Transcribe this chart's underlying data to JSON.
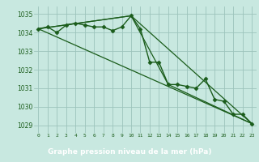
{
  "title": "Graphe pression niveau de la mer (hPa)",
  "bg_color": "#c8e8e0",
  "plot_bg_color": "#c8e8e0",
  "label_bg_color": "#2a6030",
  "label_text_color": "#ffffff",
  "line_color": "#1a5c1a",
  "grid_color": "#9cc4bc",
  "x_ticks": [
    0,
    1,
    2,
    3,
    4,
    5,
    6,
    7,
    8,
    9,
    10,
    11,
    12,
    13,
    14,
    15,
    16,
    17,
    18,
    19,
    20,
    21,
    22,
    23
  ],
  "ylim": [
    1028.6,
    1035.4
  ],
  "yticks": [
    1029,
    1030,
    1031,
    1032,
    1033,
    1034,
    1035
  ],
  "series": [
    {
      "x": [
        0,
        1,
        2,
        3,
        4,
        5,
        6,
        7,
        8,
        9,
        10,
        11,
        12,
        13,
        14,
        15,
        16,
        17,
        18,
        19,
        20,
        21,
        22,
        23
      ],
      "y": [
        1034.2,
        1034.3,
        1034.0,
        1034.4,
        1034.5,
        1034.4,
        1034.3,
        1034.3,
        1034.1,
        1034.3,
        1034.9,
        1034.2,
        1032.4,
        1032.4,
        1031.2,
        1031.2,
        1031.1,
        1031.0,
        1031.5,
        1030.4,
        1030.3,
        1029.6,
        1029.6,
        1029.1
      ],
      "marker": "D",
      "markersize": 2.5,
      "linewidth": 1.0
    },
    {
      "x": [
        0,
        23
      ],
      "y": [
        1034.2,
        1029.1
      ],
      "marker": null,
      "linewidth": 0.9
    },
    {
      "x": [
        0,
        10,
        23
      ],
      "y": [
        1034.2,
        1034.9,
        1029.1
      ],
      "marker": null,
      "linewidth": 0.9
    },
    {
      "x": [
        0,
        10,
        14,
        23
      ],
      "y": [
        1034.2,
        1034.9,
        1031.2,
        1029.1
      ],
      "marker": null,
      "linewidth": 0.9
    }
  ]
}
